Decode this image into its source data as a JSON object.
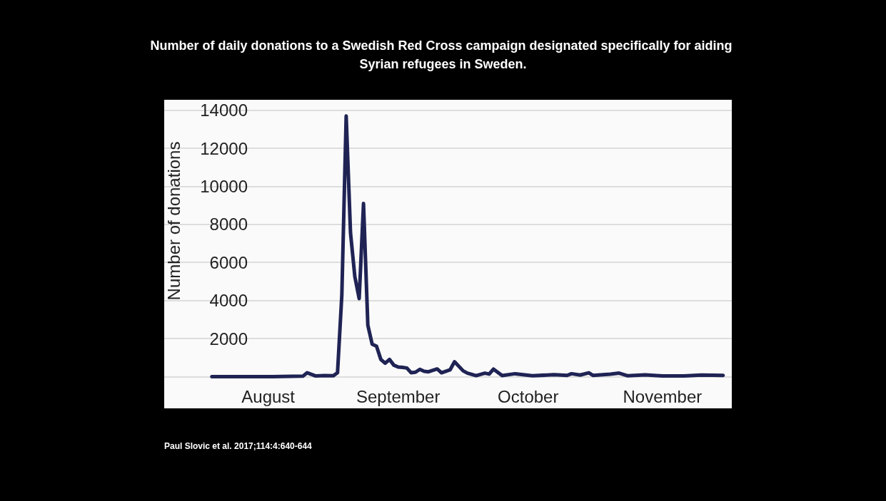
{
  "chart_data": {
    "type": "line",
    "title": "Number of daily donations to a Swedish Red Cross campaign designated specifically for aiding Syrian refugees in Sweden.",
    "ylabel": "Number of donations",
    "annotations": [
      "Paul Slovic et al. 2017;114:4:640-644"
    ],
    "series": [
      {
        "color": "#1f2354",
        "x": [
          "--08-03",
          "--08-10",
          "--08-17",
          "--08-24",
          "--08-25",
          "--08-27",
          "--08-29",
          "--08-31",
          "--09-01",
          "--09-02",
          "--09-03",
          "--09-04",
          "--09-05",
          "--09-06",
          "--09-07",
          "--09-08",
          "--09-09",
          "--09-10",
          "--09-11",
          "--09-12",
          "--09-13",
          "--09-14",
          "--09-15",
          "--09-16",
          "--09-17",
          "--09-18",
          "--09-19",
          "--09-20",
          "--09-21",
          "--09-22",
          "--09-24",
          "--09-25",
          "--09-27",
          "--09-28",
          "--09-30",
          "--10-01",
          "--10-03",
          "--10-05",
          "--10-06",
          "--10-07",
          "--10-09",
          "--10-12",
          "--10-16",
          "--10-21",
          "--10-24",
          "--10-25",
          "--10-27",
          "--10-29",
          "--10-30",
          "--11-03",
          "--11-05",
          "--11-07",
          "--11-11",
          "--11-15",
          "--11-20",
          "--11-24",
          "--11-29"
        ],
        "values": [
          0,
          0,
          0,
          20,
          200,
          30,
          50,
          40,
          200,
          4300,
          13700,
          7550,
          5250,
          4100,
          9100,
          2700,
          1700,
          1600,
          900,
          700,
          900,
          600,
          500,
          480,
          450,
          200,
          230,
          380,
          280,
          250,
          400,
          200,
          360,
          780,
          300,
          180,
          50,
          180,
          130,
          390,
          50,
          150,
          40,
          100,
          60,
          150,
          80,
          200,
          60,
          130,
          180,
          40,
          90,
          30,
          30,
          80,
          60
        ]
      }
    ],
    "xlim": [
      "--07-23",
      "--12-01"
    ],
    "xticks": [
      {
        "value": "--08-16",
        "label": "August"
      },
      {
        "value": "--09-15",
        "label": "September"
      },
      {
        "value": "--10-15",
        "label": "October"
      },
      {
        "value": "--11-15",
        "label": "November"
      }
    ],
    "ylim": [
      0,
      14000
    ],
    "yticks": [
      {
        "value": 0,
        "label": null
      },
      2000,
      4000,
      6000,
      8000,
      10000,
      12000,
      14000
    ],
    "grid": "y",
    "marker": "none",
    "line_style": "solid"
  }
}
